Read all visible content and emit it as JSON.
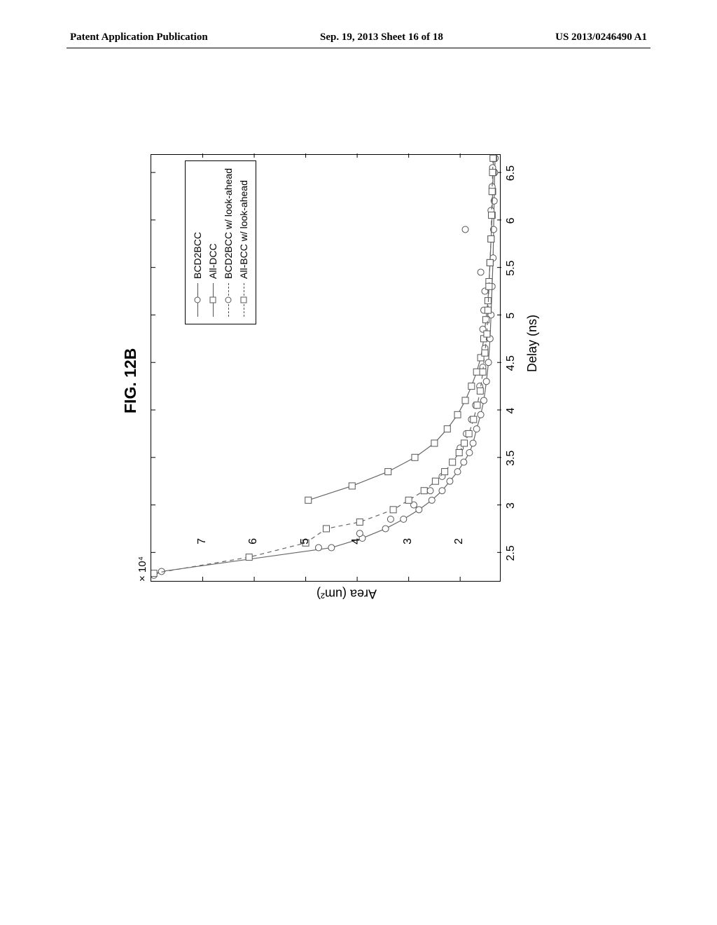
{
  "header": {
    "left": "Patent Application Publication",
    "center": "Sep. 19, 2013  Sheet 16 of 18",
    "right": "US 2013/0246490 A1"
  },
  "figure": {
    "title": "FIG. 12B",
    "chart": {
      "type": "line-scatter",
      "xlabel": "Delay (ns)",
      "ylabel": "Area (um²)",
      "y_scale_text": "× 10⁴",
      "xlim": [
        2.2,
        6.7
      ],
      "ylim": [
        1.2,
        8
      ],
      "xticks": [
        2.5,
        3,
        3.5,
        4,
        4.5,
        5,
        5.5,
        6,
        6.5
      ],
      "yticks": [
        2,
        3,
        4,
        5,
        6,
        7
      ],
      "plot_bg": "#ffffff",
      "line_color": "#666666",
      "marker_stroke": "#555555",
      "marker_size": 9,
      "legend": {
        "items": [
          {
            "label": "BCD2BCC",
            "marker": "circle",
            "dashed": false
          },
          {
            "label": "All-DCC",
            "marker": "square",
            "dashed": false
          },
          {
            "label": "BCD2BCC w/ look-ahead",
            "marker": "circle",
            "dashed": true
          },
          {
            "label": "All-BCC w/ look-ahead",
            "marker": "square",
            "dashed": true
          }
        ]
      },
      "series": [
        {
          "name": "BCD2BCC",
          "marker": "circle",
          "dashed": false,
          "points": [
            [
              2.26,
              7.95
            ],
            [
              2.3,
              7.8
            ],
            [
              2.55,
              4.5
            ],
            [
              2.65,
              3.9
            ],
            [
              2.75,
              3.45
            ],
            [
              2.85,
              3.1
            ],
            [
              2.95,
              2.8
            ],
            [
              3.05,
              2.55
            ],
            [
              3.15,
              2.35
            ],
            [
              3.25,
              2.2
            ],
            [
              3.35,
              2.05
            ],
            [
              3.45,
              1.93
            ],
            [
              3.55,
              1.82
            ],
            [
              3.65,
              1.75
            ],
            [
              3.8,
              1.68
            ],
            [
              3.95,
              1.6
            ],
            [
              4.1,
              1.54
            ],
            [
              4.3,
              1.49
            ],
            [
              4.5,
              1.45
            ],
            [
              4.75,
              1.42
            ],
            [
              5.0,
              1.4
            ],
            [
              5.3,
              1.38
            ],
            [
              5.6,
              1.36
            ],
            [
              5.9,
              1.35
            ],
            [
              6.2,
              1.34
            ],
            [
              6.5,
              1.33
            ],
            [
              6.65,
              1.32
            ]
          ]
        },
        {
          "name": "All-DCC",
          "marker": "square",
          "dashed": false,
          "points": [
            [
              3.05,
              4.95
            ],
            [
              3.2,
              4.1
            ],
            [
              3.35,
              3.4
            ],
            [
              3.5,
              2.88
            ],
            [
              3.65,
              2.5
            ],
            [
              3.8,
              2.25
            ],
            [
              3.95,
              2.05
            ],
            [
              4.1,
              1.9
            ],
            [
              4.25,
              1.78
            ],
            [
              4.4,
              1.68
            ],
            [
              4.55,
              1.6
            ],
            [
              4.75,
              1.54
            ],
            [
              4.95,
              1.5
            ],
            [
              5.15,
              1.46
            ],
            [
              5.35,
              1.44
            ],
            [
              5.55,
              1.42
            ],
            [
              5.8,
              1.4
            ],
            [
              6.05,
              1.38
            ],
            [
              6.3,
              1.37
            ],
            [
              6.5,
              1.36
            ],
            [
              6.65,
              1.35
            ]
          ]
        },
        {
          "name": "BCD2BCC-lookahead",
          "marker": "circle",
          "dashed": true,
          "connected": false,
          "points": [
            [
              2.55,
              4.75
            ],
            [
              2.7,
              3.95
            ],
            [
              2.85,
              3.35
            ],
            [
              3.0,
              2.9
            ],
            [
              3.15,
              2.58
            ],
            [
              3.3,
              2.35
            ],
            [
              3.45,
              2.15
            ],
            [
              3.6,
              2.0
            ],
            [
              3.75,
              1.88
            ],
            [
              3.9,
              1.78
            ],
            [
              4.05,
              1.7
            ],
            [
              4.25,
              1.62
            ],
            [
              4.45,
              1.56
            ],
            [
              4.65,
              1.52
            ],
            [
              4.85,
              1.56
            ],
            [
              5.05,
              1.54
            ],
            [
              5.25,
              1.52
            ],
            [
              5.45,
              1.6
            ],
            [
              5.9,
              1.9
            ],
            [
              6.1,
              1.4
            ],
            [
              6.35,
              1.38
            ],
            [
              6.55,
              1.37
            ],
            [
              6.65,
              1.36
            ]
          ]
        },
        {
          "name": "All-BCC-lookahead",
          "marker": "square",
          "dashed": true,
          "points": [
            [
              2.28,
              7.95
            ],
            [
              2.45,
              6.1
            ],
            [
              2.6,
              5.0
            ],
            [
              2.75,
              4.6
            ],
            [
              2.82,
              3.95
            ],
            [
              2.95,
              3.3
            ],
            [
              3.05,
              3.0
            ],
            [
              3.15,
              2.7
            ],
            [
              3.25,
              2.48
            ],
            [
              3.35,
              2.3
            ],
            [
              3.45,
              2.15
            ],
            [
              3.55,
              2.02
            ],
            [
              3.65,
              1.92
            ],
            [
              3.75,
              1.83
            ],
            [
              3.9,
              1.74
            ],
            [
              4.05,
              1.67
            ],
            [
              4.2,
              1.61
            ],
            [
              4.4,
              1.56
            ],
            [
              4.6,
              1.52
            ],
            [
              4.8,
              1.48
            ],
            [
              5.05,
              1.46
            ],
            [
              5.3,
              1.44
            ],
            [
              5.55,
              1.42
            ],
            [
              5.8,
              1.4
            ],
            [
              6.05,
              1.39
            ],
            [
              6.3,
              1.38
            ],
            [
              6.5,
              1.37
            ],
            [
              6.65,
              1.36
            ]
          ]
        }
      ]
    }
  }
}
